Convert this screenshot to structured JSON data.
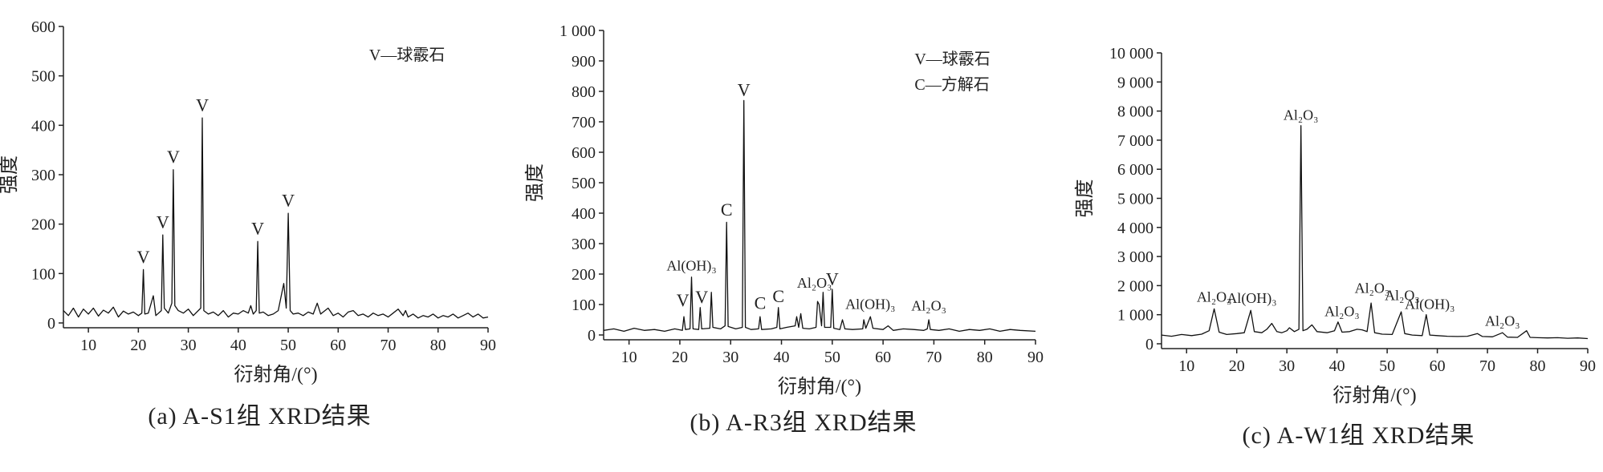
{
  "chart_data": [
    {
      "type": "line",
      "title": "(a) A-S1组 XRD结果",
      "x_label": "衍射角/(°)",
      "y_label": "强度",
      "color": "#111111",
      "xlim": [
        5,
        90
      ],
      "xticks": [
        10,
        20,
        30,
        40,
        50,
        60,
        70,
        80,
        90
      ],
      "ylim": [
        0,
        600
      ],
      "yticks": [
        0,
        100,
        200,
        300,
        400,
        500,
        600
      ],
      "notes": [
        "V—球霰石"
      ],
      "x": [
        5,
        6,
        7,
        8,
        9,
        10,
        11,
        12,
        13,
        14,
        15,
        16,
        17,
        18,
        19,
        20,
        20.7,
        21,
        21.3,
        22,
        23,
        23.5,
        24.6,
        24.9,
        25.2,
        26,
        26.7,
        27,
        27.3,
        28,
        29,
        30,
        31,
        32.5,
        32.8,
        33.1,
        34,
        35,
        36,
        37,
        38,
        39,
        40,
        41,
        42,
        42.5,
        43,
        43.6,
        43.9,
        44.2,
        45,
        46,
        47,
        48,
        49.1,
        49.6,
        50,
        50.4,
        51,
        52,
        53,
        54,
        55,
        55.8,
        56.5,
        57,
        58,
        59,
        60,
        61,
        62,
        63,
        64,
        65,
        66,
        67,
        68,
        69,
        70,
        71,
        72,
        73,
        73.5,
        74,
        75,
        76,
        77,
        78,
        79,
        80,
        81,
        82,
        83,
        84,
        85,
        86,
        87,
        88,
        89,
        90
      ],
      "values": [
        25,
        15,
        30,
        12,
        28,
        18,
        30,
        14,
        26,
        20,
        32,
        12,
        24,
        18,
        22,
        15,
        20,
        108,
        18,
        20,
        55,
        15,
        25,
        178,
        30,
        20,
        40,
        310,
        35,
        25,
        20,
        28,
        15,
        30,
        415,
        25,
        18,
        22,
        15,
        25,
        12,
        20,
        18,
        25,
        20,
        35,
        18,
        25,
        165,
        20,
        22,
        15,
        18,
        25,
        80,
        30,
        222,
        25,
        18,
        20,
        15,
        22,
        18,
        40,
        18,
        22,
        30,
        15,
        20,
        12,
        22,
        25,
        15,
        18,
        12,
        20,
        15,
        18,
        12,
        20,
        28,
        15,
        25,
        12,
        18,
        10,
        15,
        12,
        18,
        10,
        15,
        12,
        18,
        10,
        15,
        20,
        12,
        18,
        10,
        12
      ],
      "annotations": [
        {
          "text": "V",
          "x": 21,
          "y": 122
        },
        {
          "text": "V",
          "x": 24.9,
          "y": 192
        },
        {
          "text": "V",
          "x": 27,
          "y": 324
        },
        {
          "text": "V",
          "x": 32.8,
          "y": 429
        },
        {
          "text": "V",
          "x": 43.9,
          "y": 179
        },
        {
          "text": "V",
          "x": 50,
          "y": 236
        }
      ]
    },
    {
      "type": "line",
      "title": "(b) A-R3组 XRD结果",
      "x_label": "衍射角/(°)",
      "y_label": "强度",
      "color": "#111111",
      "xlim": [
        5,
        90
      ],
      "xticks": [
        10,
        20,
        30,
        40,
        50,
        60,
        70,
        80,
        90
      ],
      "ylim": [
        0,
        1000
      ],
      "yticks": [
        0,
        100,
        200,
        300,
        400,
        500,
        600,
        700,
        800,
        900,
        {
          "value": 1000,
          "label": "1 000"
        }
      ],
      "notes": [
        "V—球霰石",
        "C—方解石"
      ],
      "x": [
        5,
        7,
        9,
        11,
        13,
        15,
        17,
        19,
        20.5,
        20.8,
        21.1,
        22,
        22.3,
        22.6,
        23.7,
        24,
        24.3,
        25.9,
        26.2,
        26.5,
        28,
        28.9,
        29.2,
        29.5,
        31,
        32.3,
        32.6,
        32.9,
        34,
        35.5,
        35.8,
        36.1,
        38,
        39.1,
        39.4,
        39.7,
        41,
        42.7,
        43,
        43.4,
        43.8,
        44.2,
        45.5,
        46.8,
        47.1,
        47.4,
        47.9,
        48.2,
        48.5,
        49.7,
        50,
        50.3,
        51.5,
        52,
        52.5,
        54,
        56,
        56.2,
        56.6,
        57.5,
        58,
        60,
        61,
        62,
        64,
        66,
        68,
        68.7,
        69,
        69.3,
        71,
        73,
        75,
        77,
        79,
        81,
        83,
        85,
        87,
        90
      ],
      "values": [
        15,
        20,
        12,
        22,
        15,
        18,
        12,
        20,
        15,
        60,
        18,
        20,
        190,
        20,
        18,
        90,
        20,
        22,
        140,
        25,
        20,
        30,
        370,
        28,
        20,
        25,
        770,
        25,
        18,
        20,
        60,
        18,
        20,
        25,
        90,
        20,
        25,
        30,
        60,
        25,
        70,
        22,
        20,
        25,
        110,
        100,
        30,
        140,
        25,
        25,
        150,
        22,
        18,
        50,
        20,
        18,
        20,
        50,
        22,
        60,
        22,
        18,
        30,
        15,
        20,
        18,
        15,
        20,
        50,
        18,
        15,
        20,
        12,
        18,
        15,
        20,
        12,
        18,
        15,
        12
      ],
      "annotations": [
        {
          "text": "V",
          "x": 20.6,
          "y": 95
        },
        {
          "text": "Al(OH)₃",
          "x": 22.3,
          "y": 212
        },
        {
          "text": "V",
          "x": 24.3,
          "y": 105
        },
        {
          "text": "C",
          "x": 29.2,
          "y": 392
        },
        {
          "text": "V",
          "x": 32.6,
          "y": 785
        },
        {
          "text": "C",
          "x": 35.8,
          "y": 85
        },
        {
          "text": "C",
          "x": 39.4,
          "y": 108
        },
        {
          "text": "Al₂O₃",
          "x": 46.5,
          "y": 155
        },
        {
          "text": "V",
          "x": 50,
          "y": 165
        },
        {
          "text": "Al(OH)₃",
          "x": 57.5,
          "y": 85
        },
        {
          "text": "Al₂O₃",
          "x": 69,
          "y": 80
        }
      ]
    },
    {
      "type": "line",
      "title": "(c) A-W1组 XRD结果",
      "x_label": "衍射角/(°)",
      "y_label": "强度",
      "color": "#111111",
      "xlim": [
        5,
        90
      ],
      "xticks": [
        10,
        20,
        30,
        40,
        50,
        60,
        70,
        80,
        90
      ],
      "ylim": [
        0,
        10000
      ],
      "yticks": [
        0,
        {
          "value": 1000,
          "label": "1 000"
        },
        {
          "value": 2000,
          "label": "2 000"
        },
        {
          "value": 3000,
          "label": "3 000"
        },
        {
          "value": 4000,
          "label": "4 000"
        },
        {
          "value": 5000,
          "label": "5 000"
        },
        {
          "value": 6000,
          "label": "6 000"
        },
        {
          "value": 7000,
          "label": "7 000"
        },
        {
          "value": 8000,
          "label": "8 000"
        },
        {
          "value": 9000,
          "label": "9 000"
        },
        {
          "value": 10000,
          "label": "10 000"
        }
      ],
      "notes": [],
      "x": [
        5,
        7,
        9,
        11,
        13,
        14.5,
        15.5,
        16.5,
        18,
        20,
        21.5,
        22.8,
        23.5,
        25,
        26,
        27,
        28,
        29,
        30,
        30.5,
        31.5,
        32.4,
        32.8,
        33.2,
        34,
        35,
        36,
        38,
        39.5,
        40.2,
        41,
        42.5,
        44,
        45,
        46,
        46.8,
        47.5,
        49,
        51,
        52.8,
        53.5,
        55,
        57,
        57.8,
        58.5,
        60,
        62,
        64,
        66,
        68,
        69,
        71,
        73,
        74,
        76,
        77.8,
        78.5,
        80,
        82,
        84,
        86,
        88,
        90
      ],
      "values": [
        300,
        260,
        320,
        280,
        330,
        450,
        1200,
        400,
        320,
        350,
        380,
        1150,
        420,
        380,
        500,
        700,
        420,
        380,
        450,
        550,
        420,
        500,
        7500,
        450,
        500,
        650,
        420,
        380,
        450,
        750,
        400,
        420,
        500,
        480,
        420,
        1400,
        380,
        330,
        320,
        1100,
        350,
        300,
        280,
        1000,
        300,
        280,
        260,
        250,
        260,
        350,
        250,
        240,
        380,
        230,
        220,
        450,
        220,
        210,
        200,
        210,
        190,
        200,
        180
      ],
      "annotations": [
        {
          "text": "Al₂O₃",
          "x": 15.5,
          "y": 1450
        },
        {
          "text": "Al(OH)₃",
          "x": 23,
          "y": 1400
        },
        {
          "text": "Al₂O₃",
          "x": 32.8,
          "y": 7700
        },
        {
          "text": "Al₂O₃",
          "x": 41,
          "y": 950
        },
        {
          "text": "Al₂O₃",
          "x": 47,
          "y": 1750
        },
        {
          "text": "Al₂O₃",
          "x": 53,
          "y": 1500
        },
        {
          "text": "Al(OH)₃",
          "x": 58.5,
          "y": 1200
        },
        {
          "text": "Al₂O₃",
          "x": 73,
          "y": 620
        }
      ]
    }
  ]
}
